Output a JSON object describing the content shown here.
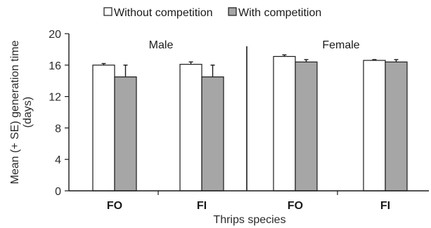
{
  "chart_data": {
    "type": "bar",
    "xlabel": "Thrips species",
    "ylabel_line1": "Mean (+ SE) generation time",
    "ylabel_line2": "(days)",
    "ylim": [
      0,
      20
    ],
    "yticks": [
      0,
      4,
      8,
      12,
      16,
      20
    ],
    "panels": [
      {
        "label": "Male",
        "categories": [
          "FO",
          "FI"
        ]
      },
      {
        "label": "Female",
        "categories": [
          "FO",
          "FI"
        ]
      }
    ],
    "categories": [
      "FO",
      "FI",
      "FO",
      "FI"
    ],
    "series": [
      {
        "name": "Without competition",
        "color": "#ffffff",
        "values": [
          16.0,
          16.1,
          17.1,
          16.6
        ],
        "errors": [
          0.2,
          0.3,
          0.2,
          0.1
        ]
      },
      {
        "name": "With competition",
        "color": "#a6a6a6",
        "values": [
          14.5,
          14.5,
          16.4,
          16.4
        ],
        "errors": [
          1.5,
          1.5,
          0.3,
          0.3
        ]
      }
    ],
    "legend_position": "top"
  }
}
